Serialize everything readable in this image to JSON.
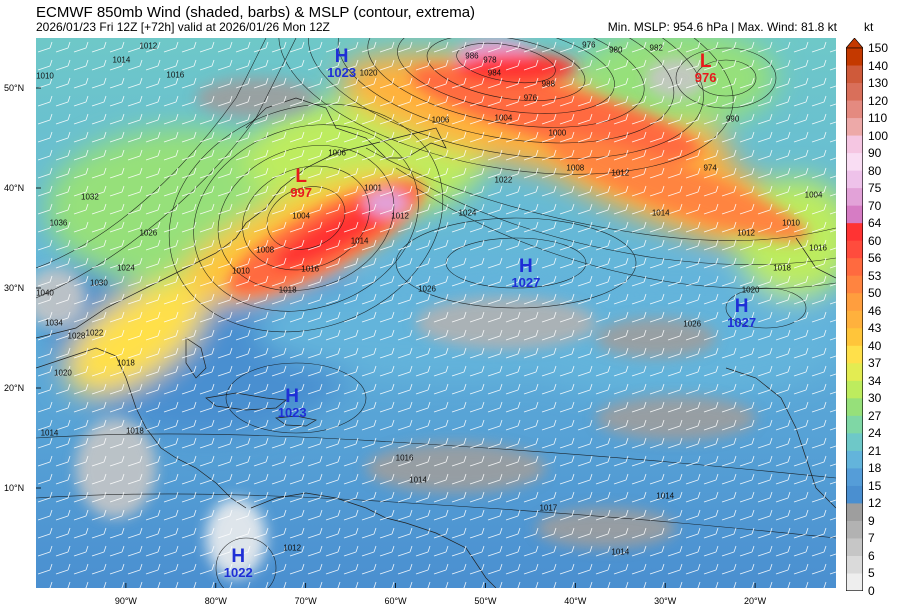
{
  "header": {
    "title": "ECMWF 850mb Wind (shaded, barbs) & MSLP (contour, extrema)",
    "subtitle": "2026/01/23 Fri 12Z [+72h] valid at 2026/01/26 Mon 12Z",
    "stats": "Min. MSLP: 954.6 hPa | Max. Wind: 81.8 kt"
  },
  "map": {
    "lat_labels": [
      "50°N",
      "40°N",
      "30°N",
      "20°N",
      "10°N"
    ],
    "lon_labels": [
      "90°W",
      "80°W",
      "70°W",
      "60°W",
      "50°W",
      "40°W",
      "30°W",
      "20°W"
    ],
    "land_color": "#9e9e9e",
    "ocean_base_color": "#4a8fd0"
  },
  "systems": [
    {
      "type": "H",
      "value": "1023",
      "lat": 52.5,
      "lon": -66,
      "color": "#1f2fd6"
    },
    {
      "type": "L",
      "value": "997",
      "lat": 40.5,
      "lon": -70.5,
      "color": "#e8191c"
    },
    {
      "type": "L",
      "value": "976",
      "lat": 52.0,
      "lon": -25.5,
      "color": "#e8191c"
    },
    {
      "type": "H",
      "value": "1027",
      "lat": 31.5,
      "lon": -45.5,
      "color": "#1f2fd6"
    },
    {
      "type": "H",
      "value": "1027",
      "lat": 27.5,
      "lon": -21.5,
      "color": "#1f2fd6"
    },
    {
      "type": "H",
      "value": "1023",
      "lat": 18.5,
      "lon": -71.5,
      "color": "#1f2fd6"
    },
    {
      "type": "H",
      "value": "1022",
      "lat": 2.5,
      "lon": -77.5,
      "color": "#1f2fd6"
    }
  ],
  "isobar_labels": [
    {
      "text": "1012",
      "lat": 54.2,
      "lon": -87.5
    },
    {
      "text": "1014",
      "lat": 52.8,
      "lon": -90.5
    },
    {
      "text": "1016",
      "lat": 51.3,
      "lon": -84.5
    },
    {
      "text": "1010",
      "lat": 51.2,
      "lon": -99.0
    },
    {
      "text": "1020",
      "lat": 51.5,
      "lon": -63.0
    },
    {
      "text": "1006",
      "lat": 43.5,
      "lon": -66.5
    },
    {
      "text": "1004",
      "lat": 37.2,
      "lon": -70.5
    },
    {
      "text": "1008",
      "lat": 33.8,
      "lon": -74.5
    },
    {
      "text": "1010",
      "lat": 31.7,
      "lon": -77.2
    },
    {
      "text": "1014",
      "lat": 34.7,
      "lon": -64.0
    },
    {
      "text": "1016",
      "lat": 31.9,
      "lon": -69.5
    },
    {
      "text": "1018",
      "lat": 29.8,
      "lon": -72.0
    },
    {
      "text": "1001",
      "lat": 40.0,
      "lon": -62.5
    },
    {
      "text": "1012",
      "lat": 37.2,
      "lon": -59.5
    },
    {
      "text": "1022",
      "lat": 40.8,
      "lon": -48.0
    },
    {
      "text": "1024",
      "lat": 37.5,
      "lon": -52.0
    },
    {
      "text": "1026",
      "lat": 29.9,
      "lon": -56.5
    },
    {
      "text": "1032",
      "lat": 39.1,
      "lon": -94.0
    },
    {
      "text": "1036",
      "lat": 36.5,
      "lon": -97.5
    },
    {
      "text": "1026",
      "lat": 35.5,
      "lon": -87.5
    },
    {
      "text": "1024",
      "lat": 32.0,
      "lon": -90.0
    },
    {
      "text": "1030",
      "lat": 30.5,
      "lon": -93.0
    },
    {
      "text": "1022",
      "lat": 25.5,
      "lon": -93.5
    },
    {
      "text": "1040",
      "lat": 29.5,
      "lon": -99.0
    },
    {
      "text": "1034",
      "lat": 26.5,
      "lon": -98.0
    },
    {
      "text": "1028",
      "lat": 25.2,
      "lon": -95.5
    },
    {
      "text": "1020",
      "lat": 21.5,
      "lon": -97.0
    },
    {
      "text": "1018",
      "lat": 22.5,
      "lon": -90.0
    },
    {
      "text": "1018",
      "lat": 15.7,
      "lon": -89.0
    },
    {
      "text": "1014",
      "lat": 15.5,
      "lon": -98.5
    },
    {
      "text": "1016",
      "lat": 13.0,
      "lon": -59.0
    },
    {
      "text": "1014",
      "lat": 3.6,
      "lon": -35.0
    },
    {
      "text": "1014",
      "lat": 10.8,
      "lon": -57.5
    },
    {
      "text": "1012",
      "lat": 4.0,
      "lon": -71.5
    },
    {
      "text": "978",
      "lat": 52.8,
      "lon": -49.5
    },
    {
      "text": "980",
      "lat": 53.8,
      "lon": -35.5
    },
    {
      "text": "982",
      "lat": 54.0,
      "lon": -31.0
    },
    {
      "text": "984",
      "lat": 51.5,
      "lon": -49.0
    },
    {
      "text": "986",
      "lat": 53.2,
      "lon": -51.5
    },
    {
      "text": "988",
      "lat": 50.4,
      "lon": -43.0
    },
    {
      "text": "976",
      "lat": 54.3,
      "lon": -38.5
    },
    {
      "text": "976",
      "lat": 49.0,
      "lon": -45.0
    },
    {
      "text": "974",
      "lat": 42.0,
      "lon": -25.0
    },
    {
      "text": "990",
      "lat": 46.9,
      "lon": -22.5
    },
    {
      "text": "1000",
      "lat": 45.5,
      "lon": -42.0
    },
    {
      "text": "1004",
      "lat": 47.0,
      "lon": -48.0
    },
    {
      "text": "1006",
      "lat": 46.8,
      "lon": -55.0
    },
    {
      "text": "1008",
      "lat": 42.0,
      "lon": -40.0
    },
    {
      "text": "1012",
      "lat": 41.5,
      "lon": -35.0
    },
    {
      "text": "1014",
      "lat": 37.5,
      "lon": -30.5
    },
    {
      "text": "1012",
      "lat": 35.5,
      "lon": -21.0
    },
    {
      "text": "1010",
      "lat": 36.5,
      "lon": -16.0
    },
    {
      "text": "1016",
      "lat": 34.0,
      "lon": -13.0
    },
    {
      "text": "1018",
      "lat": 32.0,
      "lon": -17.0
    },
    {
      "text": "1020",
      "lat": 29.8,
      "lon": -20.5
    },
    {
      "text": "1004",
      "lat": 39.3,
      "lon": -13.5
    },
    {
      "text": "1026",
      "lat": 26.4,
      "lon": -27.0
    },
    {
      "text": "1017",
      "lat": 8.0,
      "lon": -43.0
    },
    {
      "text": "1014",
      "lat": 9.2,
      "lon": -30.0
    }
  ],
  "colorbar": {
    "unit": "kt",
    "labels": [
      "150",
      "140",
      "130",
      "120",
      "110",
      "100",
      "90",
      "80",
      "75",
      "70",
      "64",
      "60",
      "56",
      "53",
      "50",
      "46",
      "43",
      "40",
      "37",
      "34",
      "30",
      "27",
      "24",
      "21",
      "18",
      "15",
      "12",
      "9",
      "7",
      "6",
      "5",
      "0"
    ],
    "colors": [
      "#c43900",
      "#cf5a3a",
      "#d96f5a",
      "#e48a80",
      "#eda9a8",
      "#f5c6e2",
      "#f9ddf3",
      "#eec2ea",
      "#e2a2d8",
      "#d67cc4",
      "#ff3333",
      "#ff4c3d",
      "#ff6a3f",
      "#ff8440",
      "#ff9e3e",
      "#ffb13d",
      "#ffc53a",
      "#ffe04a",
      "#e3ec52",
      "#bdec5e",
      "#96e07a",
      "#7fd7a5",
      "#6ec8c8",
      "#63b4db",
      "#559dd8",
      "#4a8fd0",
      "#9e9e9e",
      "#b2b2b2",
      "#c6c6c6",
      "#dadada",
      "#eeeeee"
    ]
  }
}
